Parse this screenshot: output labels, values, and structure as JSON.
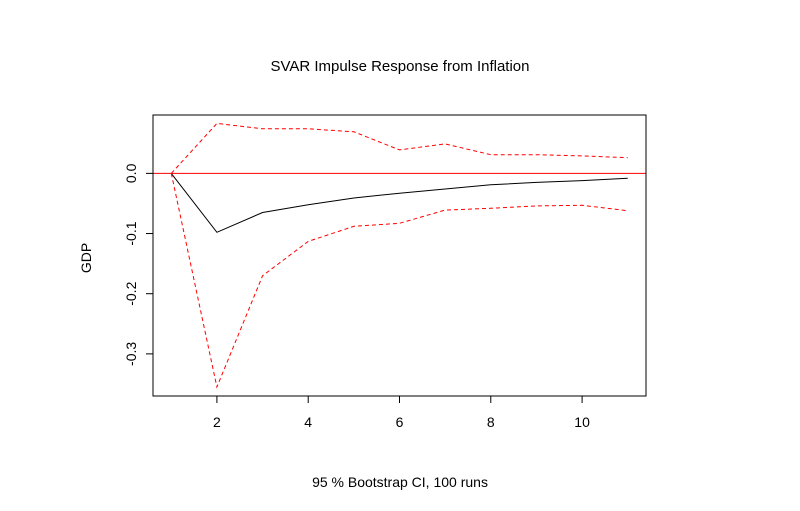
{
  "chart_data": {
    "type": "line",
    "title": "SVAR Impulse Response from Inflation",
    "xlabel": "95 % Bootstrap CI,  100 runs",
    "ylabel": "GDP",
    "xlim": [
      0.6,
      11.4
    ],
    "ylim": [
      -0.37,
      0.097
    ],
    "x": [
      1,
      2,
      3,
      4,
      5,
      6,
      7,
      8,
      9,
      10,
      11
    ],
    "x_ticks": [
      2,
      4,
      6,
      8,
      10
    ],
    "y_ticks": [
      0.0,
      -0.1,
      -0.2,
      -0.3
    ],
    "y_tick_labels": [
      "0.0",
      "-0.1",
      "-0.2",
      "-0.3"
    ],
    "zero_line": 0,
    "grid": false,
    "series": [
      {
        "role": "response",
        "color": "#000000",
        "dash": "solid",
        "values": [
          0.0,
          -0.098,
          -0.065,
          -0.052,
          -0.041,
          -0.033,
          -0.026,
          -0.019,
          -0.015,
          -0.012,
          -0.008
        ]
      },
      {
        "role": "upper-ci",
        "color": "#ff0000",
        "dash": "dashed",
        "values": [
          0.0,
          0.083,
          0.074,
          0.074,
          0.069,
          0.039,
          0.049,
          0.031,
          0.031,
          0.029,
          0.026
        ]
      },
      {
        "role": "lower-ci",
        "color": "#ff0000",
        "dash": "dashed",
        "values": [
          0.0,
          -0.355,
          -0.17,
          -0.113,
          -0.088,
          -0.083,
          -0.061,
          -0.058,
          -0.054,
          -0.053,
          -0.062
        ]
      }
    ],
    "zero_line_color": "#ff0000"
  }
}
